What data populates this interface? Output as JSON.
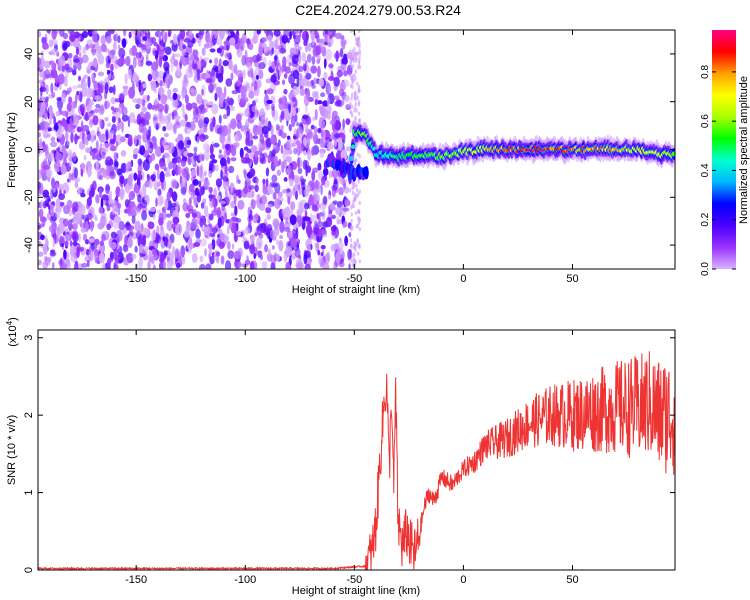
{
  "title": "C2E4.2024.279.00.53.R24",
  "chart_data": [
    {
      "type": "heatmap",
      "xlabel": "Height of straight line (km)",
      "ylabel": "Frequency (Hz)",
      "xlim": [
        -195,
        97
      ],
      "ylim": [
        -50,
        50
      ],
      "xticks": [
        -150,
        -100,
        -50,
        0,
        50
      ],
      "yticks": [
        -40,
        -20,
        0,
        20,
        40
      ],
      "colorbar": {
        "label": "Normalized spectral amplitude",
        "range": [
          0,
          0.97
        ],
        "ticks": [
          0.0,
          0.2,
          0.4,
          0.6,
          0.8
        ],
        "colormap": [
          "#d9b3ff",
          "#9a33ff",
          "#4a00ff",
          "#0000ff",
          "#00b8ff",
          "#00ffd0",
          "#00ff00",
          "#aaff00",
          "#ffff00",
          "#ffa000",
          "#ff0000",
          "#ff0080"
        ]
      },
      "features": {
        "noise_region_x": [
          -195,
          -52
        ],
        "signal_band": [
          {
            "x": -52,
            "f": -10,
            "level": 0.3
          },
          {
            "x": -50,
            "f": 7,
            "level": 0.55
          },
          {
            "x": -45,
            "f": 7,
            "level": 0.6
          },
          {
            "x": -40,
            "f": -2,
            "level": 0.4
          },
          {
            "x": -30,
            "f": -3,
            "level": 0.5
          },
          {
            "x": -20,
            "f": -2,
            "level": 0.55
          },
          {
            "x": -10,
            "f": -3,
            "level": 0.6
          },
          {
            "x": 0,
            "f": -1,
            "level": 0.65
          },
          {
            "x": 10,
            "f": 0,
            "level": 0.75
          },
          {
            "x": 20,
            "f": 0,
            "level": 0.85
          },
          {
            "x": 30,
            "f": 0,
            "level": 0.9
          },
          {
            "x": 40,
            "f": 0,
            "level": 0.9
          },
          {
            "x": 50,
            "f": 0,
            "level": 0.85
          },
          {
            "x": 60,
            "f": 0,
            "level": 0.85
          },
          {
            "x": 70,
            "f": 0,
            "level": 0.8
          },
          {
            "x": 80,
            "f": 0,
            "level": 0.75
          },
          {
            "x": 90,
            "f": -2,
            "level": 0.7
          },
          {
            "x": 97,
            "f": -2,
            "level": 0.6
          }
        ]
      }
    },
    {
      "type": "line",
      "xlabel": "Height of straight line (km)",
      "ylabel": "SNR (10 * v/v)",
      "yscale_label": "(x10",
      "yscale_exp": "4",
      "yscale_close": ")",
      "xlim": [
        -195,
        97
      ],
      "ylim": [
        0,
        3.1
      ],
      "xticks": [
        -150,
        -100,
        -50,
        0,
        50
      ],
      "yticks": [
        0,
        1,
        2,
        3
      ],
      "color": "#ee3333",
      "series": [
        {
          "x": [
            -195,
            -60,
            -45,
            -42,
            -40,
            -38,
            -36,
            -35,
            -34,
            -33,
            -32,
            -31,
            -30,
            -29,
            -28,
            -26,
            -24,
            -22,
            -20,
            -18,
            -16,
            -14,
            -12,
            -10,
            -5,
            0,
            5,
            10,
            20,
            30,
            40,
            50,
            60,
            70,
            80,
            85,
            90,
            97
          ],
          "y": [
            0.02,
            0.02,
            0.05,
            0.2,
            0.6,
            1.5,
            2.3,
            2.35,
            1.2,
            2.3,
            1.0,
            2.3,
            0.6,
            0.5,
            0.3,
            0.5,
            0.3,
            0.2,
            0.5,
            0.8,
            1.0,
            0.9,
            1.0,
            1.2,
            1.1,
            1.3,
            1.4,
            1.6,
            1.7,
            1.9,
            2.0,
            2.0,
            2.05,
            2.1,
            2.1,
            2.15,
            2.0,
            2.0
          ]
        }
      ]
    }
  ]
}
